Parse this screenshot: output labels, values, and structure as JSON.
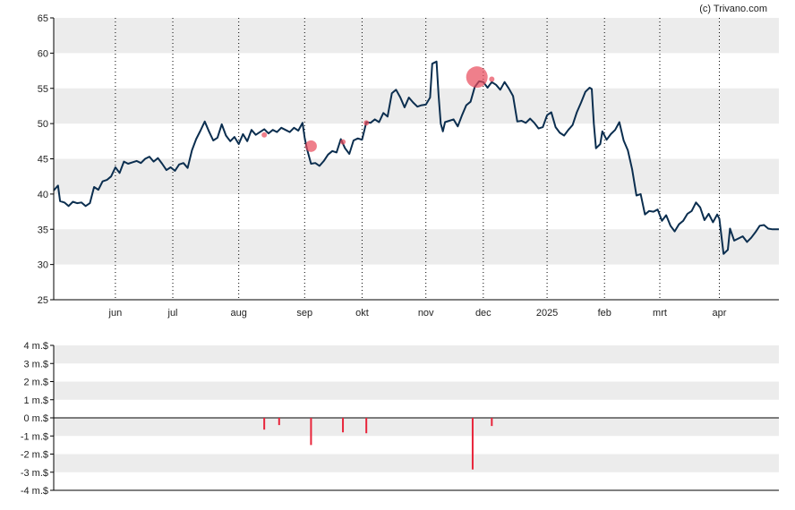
{
  "credit": "(c) Trivano.com",
  "colors": {
    "line": "#0b2e4f",
    "bubble": "#e8485a",
    "band": "#ececec",
    "bar": "#e8243a",
    "axis": "#000000"
  },
  "chart_data": [
    {
      "type": "line",
      "title": "",
      "xlabel": "",
      "ylabel": "",
      "ylim": [
        25,
        65
      ],
      "yticks": [
        "65",
        "60",
        "55",
        "50",
        "45",
        "40",
        "35",
        "30",
        "25"
      ],
      "x_axis_range_days": [
        0,
        341
      ],
      "month_ticks": [
        {
          "label": "jun",
          "day": 29
        },
        {
          "label": "jul",
          "day": 56
        },
        {
          "label": "aug",
          "day": 87
        },
        {
          "label": "sep",
          "day": 118
        },
        {
          "label": "okt",
          "day": 145
        },
        {
          "label": "nov",
          "day": 175
        },
        {
          "label": "dec",
          "day": 202
        },
        {
          "label": "2025",
          "day": 232
        },
        {
          "label": "feb",
          "day": 259
        },
        {
          "label": "mrt",
          "day": 285
        },
        {
          "label": "apr",
          "day": 313
        }
      ],
      "grid": "dotted vertical lines at months, alternating horizontal bands",
      "series": [
        {
          "points": [
            [
              0,
              40.5
            ],
            [
              2,
              41.2
            ],
            [
              3,
              39.0
            ],
            [
              5,
              38.8
            ],
            [
              7,
              38.3
            ],
            [
              9,
              38.9
            ],
            [
              11,
              38.7
            ],
            [
              13,
              38.8
            ],
            [
              15,
              38.3
            ],
            [
              17,
              38.7
            ],
            [
              19,
              41.0
            ],
            [
              21,
              40.6
            ],
            [
              23,
              41.8
            ],
            [
              25,
              42.0
            ],
            [
              27,
              42.5
            ],
            [
              29,
              43.8
            ],
            [
              31,
              43.0
            ],
            [
              33,
              44.6
            ],
            [
              35,
              44.3
            ],
            [
              37,
              44.5
            ],
            [
              39,
              44.7
            ],
            [
              41,
              44.4
            ],
            [
              43,
              45.0
            ],
            [
              45,
              45.3
            ],
            [
              47,
              44.6
            ],
            [
              49,
              45.1
            ],
            [
              51,
              44.3
            ],
            [
              53,
              43.4
            ],
            [
              55,
              43.8
            ],
            [
              57,
              43.3
            ],
            [
              59,
              44.2
            ],
            [
              61,
              44.4
            ],
            [
              63,
              43.7
            ],
            [
              65,
              46.2
            ],
            [
              67,
              47.8
            ],
            [
              69,
              49.0
            ],
            [
              71,
              50.3
            ],
            [
              73,
              48.9
            ],
            [
              75,
              47.6
            ],
            [
              77,
              48.0
            ],
            [
              79,
              49.9
            ],
            [
              81,
              48.3
            ],
            [
              83,
              47.5
            ],
            [
              85,
              48.1
            ],
            [
              87,
              47.1
            ],
            [
              89,
              48.5
            ],
            [
              91,
              47.5
            ],
            [
              93,
              49.1
            ],
            [
              95,
              48.4
            ],
            [
              97,
              48.8
            ],
            [
              99,
              49.2
            ],
            [
              101,
              48.6
            ],
            [
              103,
              49.1
            ],
            [
              105,
              48.8
            ],
            [
              107,
              49.4
            ],
            [
              109,
              49.1
            ],
            [
              111,
              48.8
            ],
            [
              113,
              49.4
            ],
            [
              115,
              49.0
            ],
            [
              117,
              50.1
            ],
            [
              118,
              48.0
            ],
            [
              119,
              46.5
            ],
            [
              121,
              44.3
            ],
            [
              123,
              44.4
            ],
            [
              125,
              44.0
            ],
            [
              127,
              44.7
            ],
            [
              129,
              45.6
            ],
            [
              131,
              46.1
            ],
            [
              133,
              45.9
            ],
            [
              135,
              47.8
            ],
            [
              137,
              46.5
            ],
            [
              139,
              45.7
            ],
            [
              141,
              47.6
            ],
            [
              143,
              47.9
            ],
            [
              145,
              47.7
            ],
            [
              147,
              50.2
            ],
            [
              149,
              50.1
            ],
            [
              151,
              50.6
            ],
            [
              153,
              50.2
            ],
            [
              155,
              51.5
            ],
            [
              157,
              51.0
            ],
            [
              159,
              54.3
            ],
            [
              161,
              54.8
            ],
            [
              163,
              53.7
            ],
            [
              165,
              52.3
            ],
            [
              167,
              53.7
            ],
            [
              169,
              53.0
            ],
            [
              171,
              52.4
            ],
            [
              173,
              52.6
            ],
            [
              175,
              52.7
            ],
            [
              177,
              53.7
            ],
            [
              178,
              58.5
            ],
            [
              180,
              58.8
            ],
            [
              181,
              54.0
            ],
            [
              182,
              50.0
            ],
            [
              183,
              48.9
            ],
            [
              184,
              50.2
            ],
            [
              186,
              50.4
            ],
            [
              188,
              50.6
            ],
            [
              190,
              49.6
            ],
            [
              192,
              51.2
            ],
            [
              194,
              52.6
            ],
            [
              196,
              53.1
            ],
            [
              198,
              55.2
            ],
            [
              200,
              56.0
            ],
            [
              202,
              55.9
            ],
            [
              204,
              55.1
            ],
            [
              206,
              55.9
            ],
            [
              208,
              55.5
            ],
            [
              210,
              54.8
            ],
            [
              212,
              55.9
            ],
            [
              214,
              55.0
            ],
            [
              216,
              53.9
            ],
            [
              218,
              50.3
            ],
            [
              220,
              50.4
            ],
            [
              222,
              50.1
            ],
            [
              224,
              50.7
            ],
            [
              226,
              50.1
            ],
            [
              228,
              49.3
            ],
            [
              230,
              49.5
            ],
            [
              232,
              51.2
            ],
            [
              234,
              51.6
            ],
            [
              236,
              49.5
            ],
            [
              238,
              48.7
            ],
            [
              240,
              48.3
            ],
            [
              242,
              49.1
            ],
            [
              244,
              49.8
            ],
            [
              246,
              51.6
            ],
            [
              248,
              53.0
            ],
            [
              250,
              54.5
            ],
            [
              252,
              55.1
            ],
            [
              253,
              54.9
            ],
            [
              254,
              50.0
            ],
            [
              255,
              46.5
            ],
            [
              257,
              47.1
            ],
            [
              258,
              48.9
            ],
            [
              260,
              47.7
            ],
            [
              262,
              48.5
            ],
            [
              264,
              49.1
            ],
            [
              266,
              50.2
            ],
            [
              268,
              47.6
            ],
            [
              270,
              46.2
            ],
            [
              272,
              43.5
            ],
            [
              274,
              39.8
            ],
            [
              276,
              40.0
            ],
            [
              278,
              37.1
            ],
            [
              280,
              37.6
            ],
            [
              282,
              37.5
            ],
            [
              284,
              37.8
            ],
            [
              286,
              36.2
            ],
            [
              288,
              37.0
            ],
            [
              290,
              35.5
            ],
            [
              292,
              34.7
            ],
            [
              294,
              35.7
            ],
            [
              296,
              36.2
            ],
            [
              298,
              37.2
            ],
            [
              300,
              37.6
            ],
            [
              302,
              38.8
            ],
            [
              304,
              38.1
            ],
            [
              306,
              36.3
            ],
            [
              308,
              37.2
            ],
            [
              310,
              36.0
            ],
            [
              312,
              37.1
            ],
            [
              313,
              36.5
            ],
            [
              315,
              31.5
            ],
            [
              317,
              32.1
            ],
            [
              318,
              35.1
            ],
            [
              320,
              33.4
            ],
            [
              322,
              33.7
            ],
            [
              324,
              34.0
            ],
            [
              326,
              33.2
            ],
            [
              328,
              33.8
            ],
            [
              330,
              34.6
            ],
            [
              332,
              35.5
            ],
            [
              334,
              35.6
            ],
            [
              336,
              35.1
            ],
            [
              338,
              35.0
            ],
            [
              341,
              35.0
            ]
          ]
        }
      ],
      "bubbles": [
        {
          "day": 99,
          "value": 48.4,
          "size": "small"
        },
        {
          "day": 121,
          "value": 46.8,
          "size": "medium"
        },
        {
          "day": 136,
          "value": 47.4,
          "size": "small"
        },
        {
          "day": 147,
          "value": 50.1,
          "size": "small"
        },
        {
          "day": 199,
          "value": 56.6,
          "size": "large"
        },
        {
          "day": 206,
          "value": 56.3,
          "size": "small"
        }
      ]
    },
    {
      "type": "bar",
      "title": "",
      "xlabel": "",
      "ylabel": "",
      "ylim": [
        -4,
        4
      ],
      "yticks": [
        "4 m.$",
        "3 m.$",
        "2 m.$",
        "1 m.$",
        "0 m.$",
        "-1 m.$",
        "-2 m.$",
        "-3 m.$",
        "-4 m.$"
      ],
      "values": [
        {
          "day": 99,
          "value": -0.65
        },
        {
          "day": 106,
          "value": -0.4
        },
        {
          "day": 121,
          "value": -1.5
        },
        {
          "day": 136,
          "value": -0.8
        },
        {
          "day": 147,
          "value": -0.85
        },
        {
          "day": 197,
          "value": -2.85
        },
        {
          "day": 206,
          "value": -0.45
        }
      ]
    }
  ]
}
